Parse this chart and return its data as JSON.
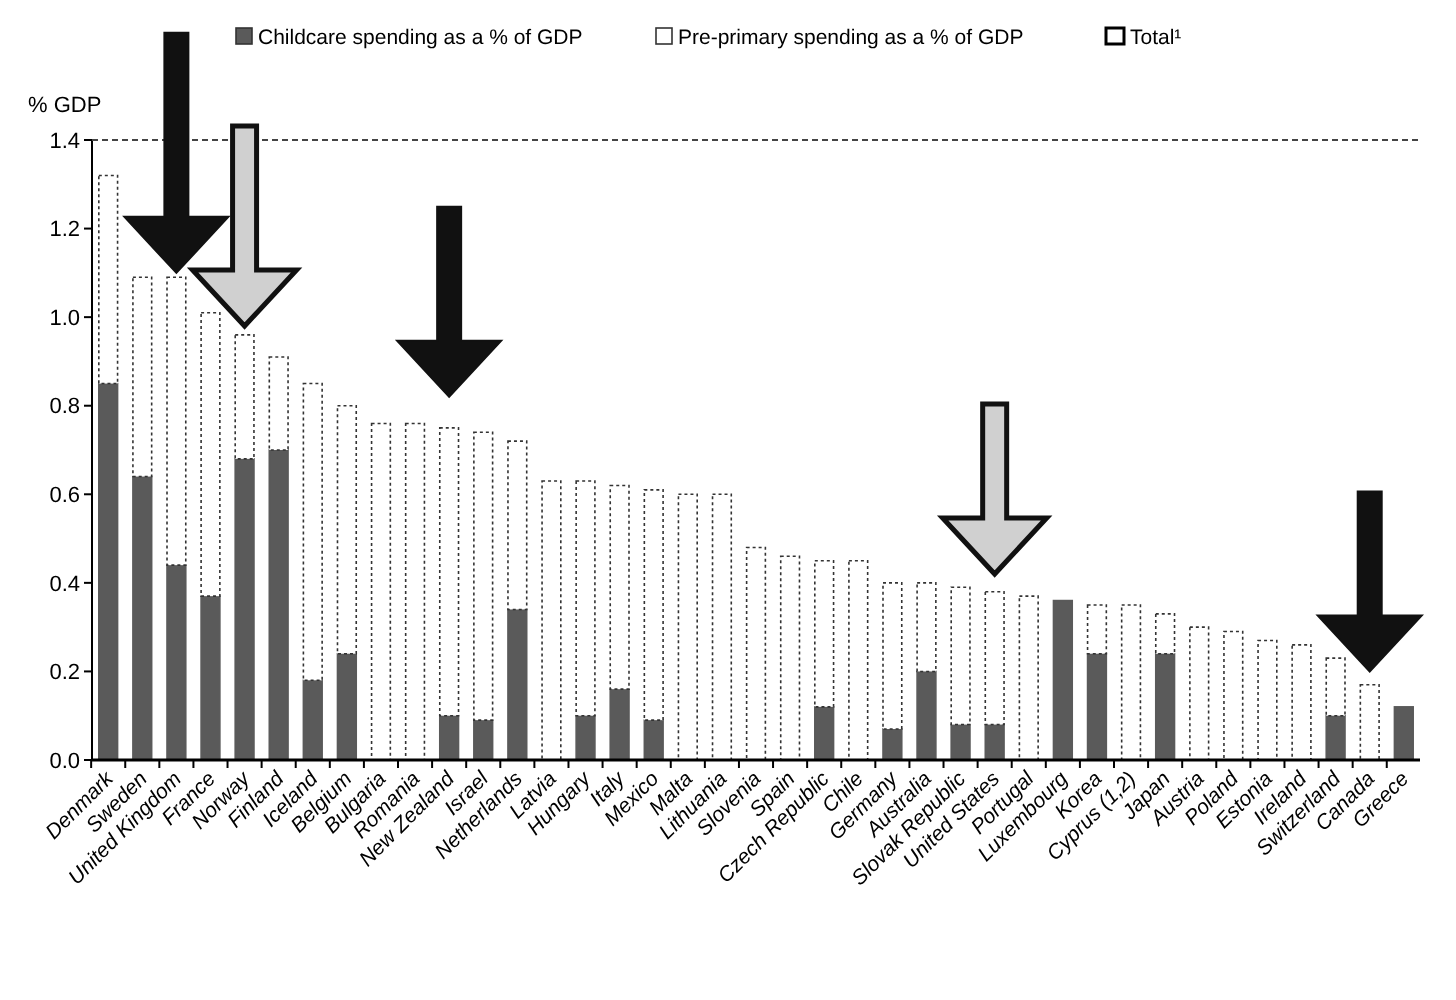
{
  "chart_data": {
    "type": "bar",
    "stacked": true,
    "ylabel": "% GDP",
    "categories": [
      "Denmark",
      "Sweden",
      "United Kingdom",
      "France",
      "Norway",
      "Finland",
      "Iceland",
      "Belgium",
      "Bulgaria",
      "Romania",
      "New Zealand",
      "Israel",
      "Netherlands",
      "Latvia",
      "Hungary",
      "Italy",
      "Mexico",
      "Malta",
      "Lithuania",
      "Slovenia",
      "Spain",
      "Czech Republic",
      "Chile",
      "Germany",
      "Australia",
      "Slovak Republic",
      "United States",
      "Portugal",
      "Luxembourg",
      "Korea",
      "Cyprus (1,2)",
      "Japan",
      "Austria",
      "Poland",
      "Estonia",
      "Ireland",
      "Switzerland",
      "Canada",
      "Greece"
    ],
    "series": [
      {
        "name": "Childcare spending as a % of GDP",
        "color": "#5a5a5a",
        "values": [
          0.85,
          0.64,
          0.44,
          0.37,
          0.68,
          0.7,
          0.18,
          0.24,
          0,
          0,
          0.1,
          0.09,
          0.34,
          0,
          0.1,
          0.16,
          0.09,
          0,
          0,
          0,
          0,
          0.12,
          0,
          0.07,
          0.2,
          0.08,
          0.08,
          0,
          0.36,
          0.24,
          0,
          0.24,
          0,
          0,
          0,
          0,
          0.1,
          0,
          0.12
        ]
      },
      {
        "name": "Pre-primary spending as a % of GDP",
        "color": "#ffffff",
        "values": [
          0.47,
          0.45,
          0.65,
          0.64,
          0.28,
          0.21,
          0.67,
          0.56,
          0.76,
          0.76,
          0.65,
          0.65,
          0.38,
          0.63,
          0.53,
          0.46,
          0.52,
          0.6,
          0.6,
          0.48,
          0.46,
          0.33,
          0.45,
          0.33,
          0.2,
          0.31,
          0.3,
          0.37,
          0,
          0.11,
          0.35,
          0.09,
          0.3,
          0.29,
          0.27,
          0.26,
          0.13,
          0.17,
          0
        ]
      }
    ],
    "ylim": [
      0,
      1.4
    ],
    "yticks": [
      {
        "value": 0,
        "label": "0.0"
      },
      {
        "value": 0.2,
        "label": "0.2"
      },
      {
        "value": 0.4,
        "label": "0.4"
      },
      {
        "value": 0.6,
        "label": "0.6"
      },
      {
        "value": 0.8,
        "label": "0.8"
      },
      {
        "value": 1,
        "label": "1.0"
      },
      {
        "value": 1.2,
        "label": "1.2"
      },
      {
        "value": 1.4,
        "label": "1.4"
      }
    ],
    "legend": "top",
    "annotations": [
      "Total¹"
    ]
  }
}
